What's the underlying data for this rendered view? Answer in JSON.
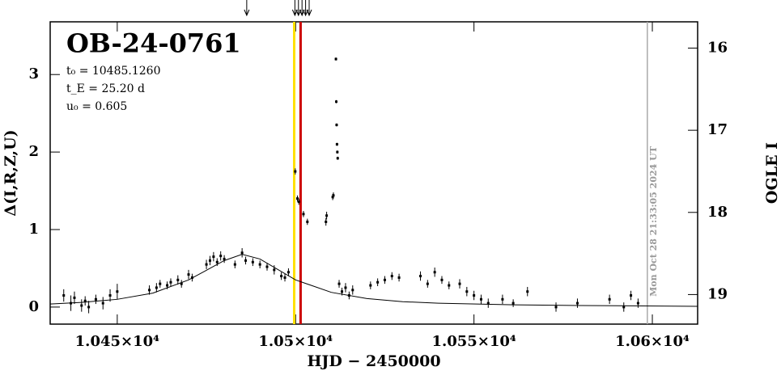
{
  "chart_data": {
    "type": "scatter",
    "title": "OB-24-0761",
    "params": [
      "t₀ = 10485.1260",
      "t_E = 25.20 d",
      "u₀ = 0.605"
    ],
    "xlabel": "HJD − 2450000",
    "ylabel": "Δ(I,R,Z,U)",
    "y2label": "OGLE I",
    "xlim": [
      10431.2,
      10612.7
    ],
    "ylim": [
      -0.22,
      3.68
    ],
    "y2lim": [
      19.36,
      15.68
    ],
    "xticks": [
      {
        "value": 10450,
        "label": "1.045×10⁴"
      },
      {
        "value": 10500,
        "label": "1.05×10⁴"
      },
      {
        "value": 10550,
        "label": "1.055×10⁴"
      },
      {
        "value": 10600,
        "label": "1.06×10⁴"
      }
    ],
    "yticks": [
      0,
      1,
      2,
      3
    ],
    "y2ticks": [
      16,
      17,
      18,
      19
    ],
    "color": "#000000",
    "x": [
      10435,
      10437,
      10438,
      10440,
      10441,
      10442,
      10444,
      10446,
      10448,
      10450,
      10459,
      10461,
      10462,
      10464,
      10465,
      10467,
      10468,
      10470,
      10471,
      10475,
      10476,
      10477,
      10478,
      10479,
      10480,
      10483,
      10485,
      10486,
      10488,
      10490,
      10492,
      10494,
      10496,
      10497,
      10498,
      10499.9,
      10500.5,
      10500.9,
      10502.2,
      10503.3,
      10508.5,
      10508.7,
      10510.4,
      10510.6,
      10511.3,
      10511.4,
      10511.5,
      10511.6,
      10511.7,
      10511.8,
      10512.2,
      10513,
      10514,
      10515,
      10516,
      10521,
      10523,
      10525,
      10527,
      10529,
      10535,
      10537,
      10539,
      10541,
      10543,
      10546,
      10548,
      10550,
      10552,
      10554,
      10558,
      10561,
      10565,
      10573,
      10579,
      10588,
      10592,
      10594,
      10596
    ],
    "values": [
      0.15,
      0.05,
      0.12,
      0.02,
      0.08,
      0.0,
      0.1,
      0.05,
      0.15,
      0.2,
      0.22,
      0.25,
      0.3,
      0.28,
      0.32,
      0.35,
      0.3,
      0.42,
      0.38,
      0.55,
      0.6,
      0.65,
      0.58,
      0.66,
      0.62,
      0.55,
      0.7,
      0.6,
      0.58,
      0.55,
      0.52,
      0.48,
      0.4,
      0.38,
      0.45,
      1.75,
      1.4,
      1.36,
      1.2,
      1.1,
      1.1,
      1.18,
      1.42,
      1.44,
      3.2,
      2.65,
      2.35,
      2.1,
      2.0,
      1.92,
      0.3,
      0.2,
      0.25,
      0.15,
      0.22,
      0.28,
      0.32,
      0.35,
      0.4,
      0.38,
      0.4,
      0.3,
      0.45,
      0.35,
      0.28,
      0.3,
      0.2,
      0.15,
      0.1,
      0.05,
      0.1,
      0.05,
      0.2,
      0.0,
      0.05,
      0.1,
      0.0,
      0.15,
      0.05
    ],
    "errors": [
      0.08,
      0.1,
      0.08,
      0.08,
      0.06,
      0.08,
      0.06,
      0.08,
      0.08,
      0.1,
      0.06,
      0.06,
      0.05,
      0.05,
      0.05,
      0.06,
      0.05,
      0.06,
      0.05,
      0.06,
      0.06,
      0.06,
      0.05,
      0.06,
      0.05,
      0.05,
      0.06,
      0.05,
      0.05,
      0.05,
      0.05,
      0.06,
      0.05,
      0.05,
      0.05,
      0.04,
      0.04,
      0.04,
      0.04,
      0.04,
      0.05,
      0.05,
      0.04,
      0.04,
      0.02,
      0.02,
      0.02,
      0.02,
      0.02,
      0.02,
      0.05,
      0.05,
      0.06,
      0.05,
      0.06,
      0.05,
      0.05,
      0.05,
      0.05,
      0.05,
      0.06,
      0.05,
      0.06,
      0.05,
      0.05,
      0.06,
      0.06,
      0.06,
      0.06,
      0.06,
      0.06,
      0.05,
      0.06,
      0.06,
      0.06,
      0.06,
      0.06,
      0.06,
      0.06
    ],
    "model": {
      "x": [
        10431.2,
        10440,
        10450,
        10460,
        10470,
        10480,
        10485,
        10490,
        10500,
        10510,
        10520,
        10530,
        10540,
        10560,
        10580,
        10612.7
      ],
      "values": [
        0.04,
        0.06,
        0.1,
        0.18,
        0.35,
        0.6,
        0.68,
        0.62,
        0.35,
        0.19,
        0.11,
        0.07,
        0.05,
        0.03,
        0.02,
        0.01
      ]
    },
    "vlines": [
      {
        "x": 10499.6,
        "color": "#ffe000"
      },
      {
        "x": 10501.4,
        "color": "#cc0000"
      },
      {
        "x": 10598.6,
        "color": "#aaaaaa"
      }
    ],
    "arrows": [
      10486.3,
      10499.8,
      10500.8,
      10501.8,
      10502.8,
      10503.8
    ],
    "annotation": "Mon Oct 28 21:33:05 2024 UT"
  }
}
